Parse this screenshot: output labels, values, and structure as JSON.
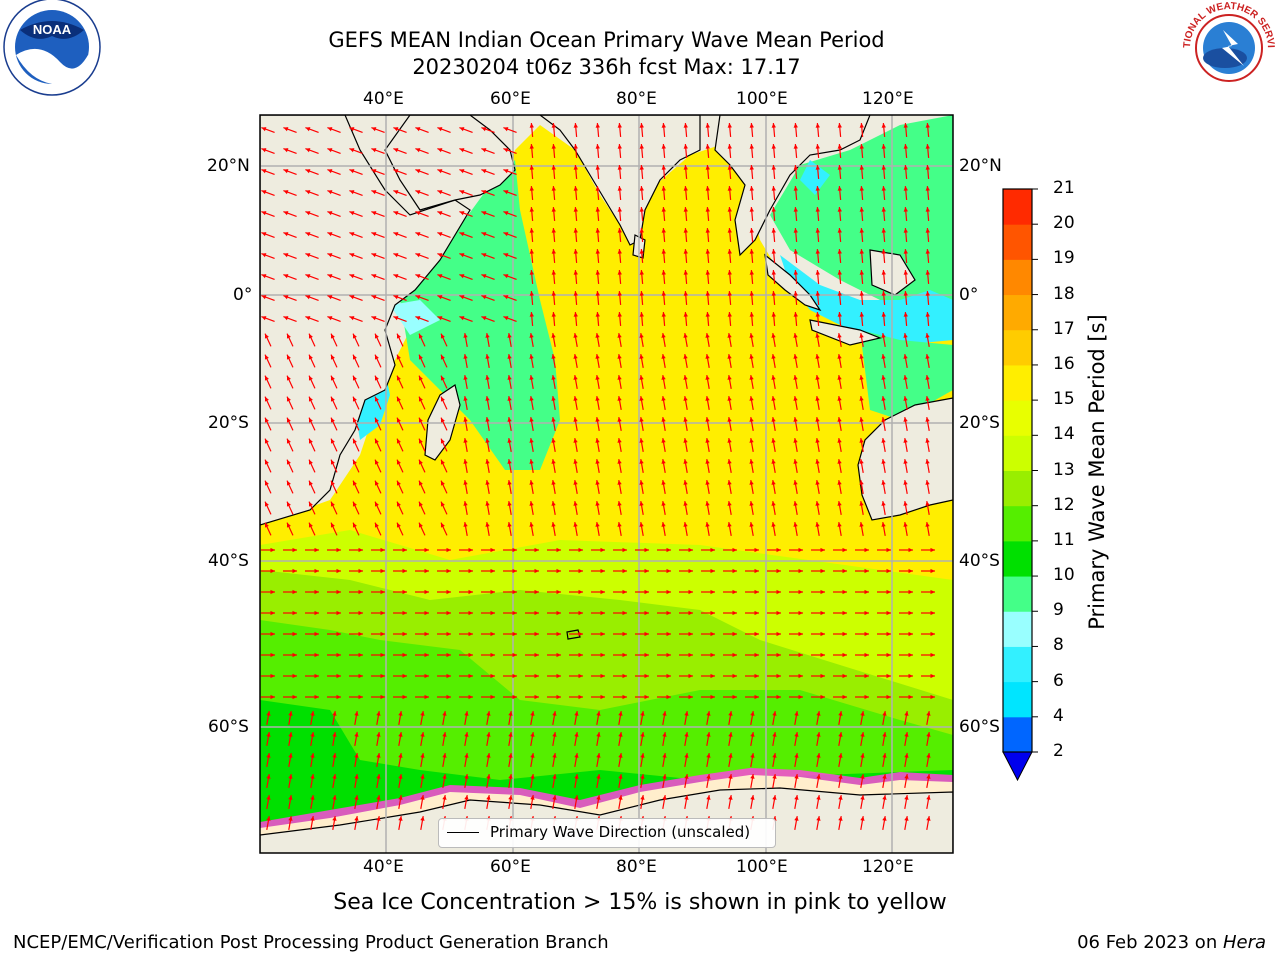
{
  "title_line1": "GEFS MEAN Indian Ocean Primary Wave Mean Period",
  "title_line2": "20230204 t06z 336h fcst   Max: 17.17",
  "top_lon_labels": [
    "40°E",
    "60°E",
    "80°E",
    "100°E",
    "120°E"
  ],
  "bottom_lon_labels": [
    "40°E",
    "60°E",
    "80°E",
    "100°E",
    "120°E"
  ],
  "left_lat_labels": [
    "20°N",
    "0°",
    "20°S",
    "40°S",
    "60°S"
  ],
  "right_lat_labels": [
    "20°N",
    "0°",
    "20°S",
    "40°S",
    "60°S"
  ],
  "legend_text": "Primary Wave Direction (unscaled)",
  "colorbar": {
    "label": "Primary Wave Mean Period [s]",
    "tick_labels": [
      "2",
      "4",
      "6",
      "8",
      "9",
      "10",
      "11",
      "12",
      "13",
      "14",
      "15",
      "16",
      "17",
      "18",
      "19",
      "20",
      "21"
    ],
    "colors": [
      "#0066ff",
      "#00e5ff",
      "#33f0ff",
      "#99ffff",
      "#44ff88",
      "#00e000",
      "#55ee00",
      "#99ee00",
      "#ccff00",
      "#e8ff00",
      "#ffee00",
      "#ffcc00",
      "#ffaa00",
      "#ff8800",
      "#ff5500",
      "#ff2a00",
      "#ff0000"
    ],
    "under_color": "#0000ee"
  },
  "subtitle": "Sea Ice Concentration > 15% is shown in pink to yellow",
  "footer_left": "NCEP/EMC/Verification Post Processing Product Generation Branch",
  "footer_date": "06 Feb 2023 on ",
  "footer_machine": "Hera",
  "logo_left_text": "NOAA",
  "logo_right_text": "NATIONAL WEATHER SERVICE",
  "colors": {
    "land": "#eeecdf",
    "grid": "#b0b0b0",
    "arrow": "#ff0000"
  }
}
